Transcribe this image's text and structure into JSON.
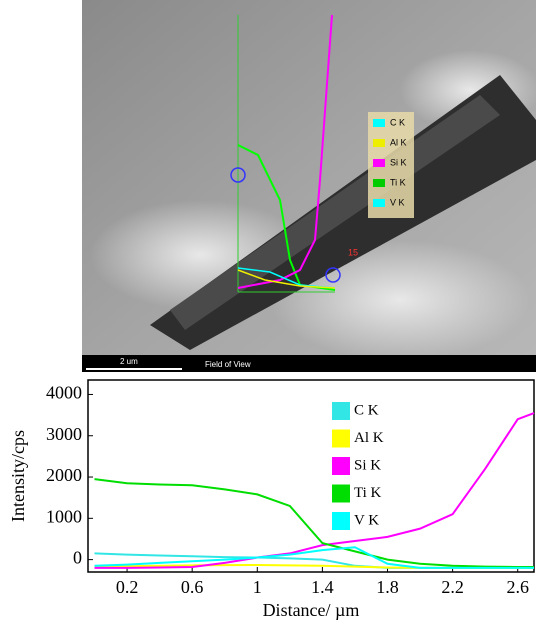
{
  "image": {
    "legend": [
      "C K",
      "Al K",
      "Si K",
      "Ti K",
      "V K"
    ],
    "marker": "15",
    "scale_label": "2 um",
    "caption": "Field of View"
  },
  "chart_data": {
    "type": "line",
    "x_label": "Distance/ µm",
    "y_label": "Intensity/cps",
    "x": [
      0,
      0.2,
      0.4,
      0.6,
      0.8,
      1.0,
      1.2,
      1.4,
      1.6,
      1.8,
      2.0,
      2.2,
      2.4,
      2.6,
      2.7
    ],
    "series": [
      {
        "name": "C K",
        "color": "#33e6e6",
        "values": [
          150,
          120,
          100,
          80,
          60,
          50,
          30,
          0,
          -150,
          -200,
          -200,
          -200,
          -200,
          -200,
          -200
        ]
      },
      {
        "name": "Al K",
        "color": "#ffff00",
        "values": [
          -170,
          -160,
          -150,
          -140,
          -135,
          -130,
          -140,
          -150,
          -170,
          -190,
          -200,
          -200,
          -200,
          -200,
          -200
        ]
      },
      {
        "name": "Si K",
        "color": "#ff00ff",
        "values": [
          -200,
          -200,
          -190,
          -180,
          -80,
          50,
          150,
          350,
          450,
          550,
          750,
          1100,
          2200,
          3400,
          3550
        ]
      },
      {
        "name": "Ti K",
        "color": "#00dd00",
        "values": [
          1950,
          1850,
          1820,
          1800,
          1700,
          1580,
          1300,
          400,
          200,
          0,
          -100,
          -150,
          -170,
          -180,
          -180
        ]
      },
      {
        "name": "V K",
        "color": "#00ffff",
        "values": [
          -150,
          -120,
          -80,
          -40,
          0,
          50,
          120,
          230,
          300,
          -100,
          -200,
          -200,
          -200,
          -200,
          -200
        ]
      }
    ],
    "xlim": [
      -0.04,
      2.7
    ],
    "ylim": [
      -300,
      4350
    ],
    "xticks": [
      0.2,
      0.6,
      1.0,
      1.4,
      1.8,
      2.2,
      2.6
    ],
    "yticks": [
      0,
      1000,
      2000,
      3000,
      4000
    ],
    "legend": "upper-center"
  }
}
